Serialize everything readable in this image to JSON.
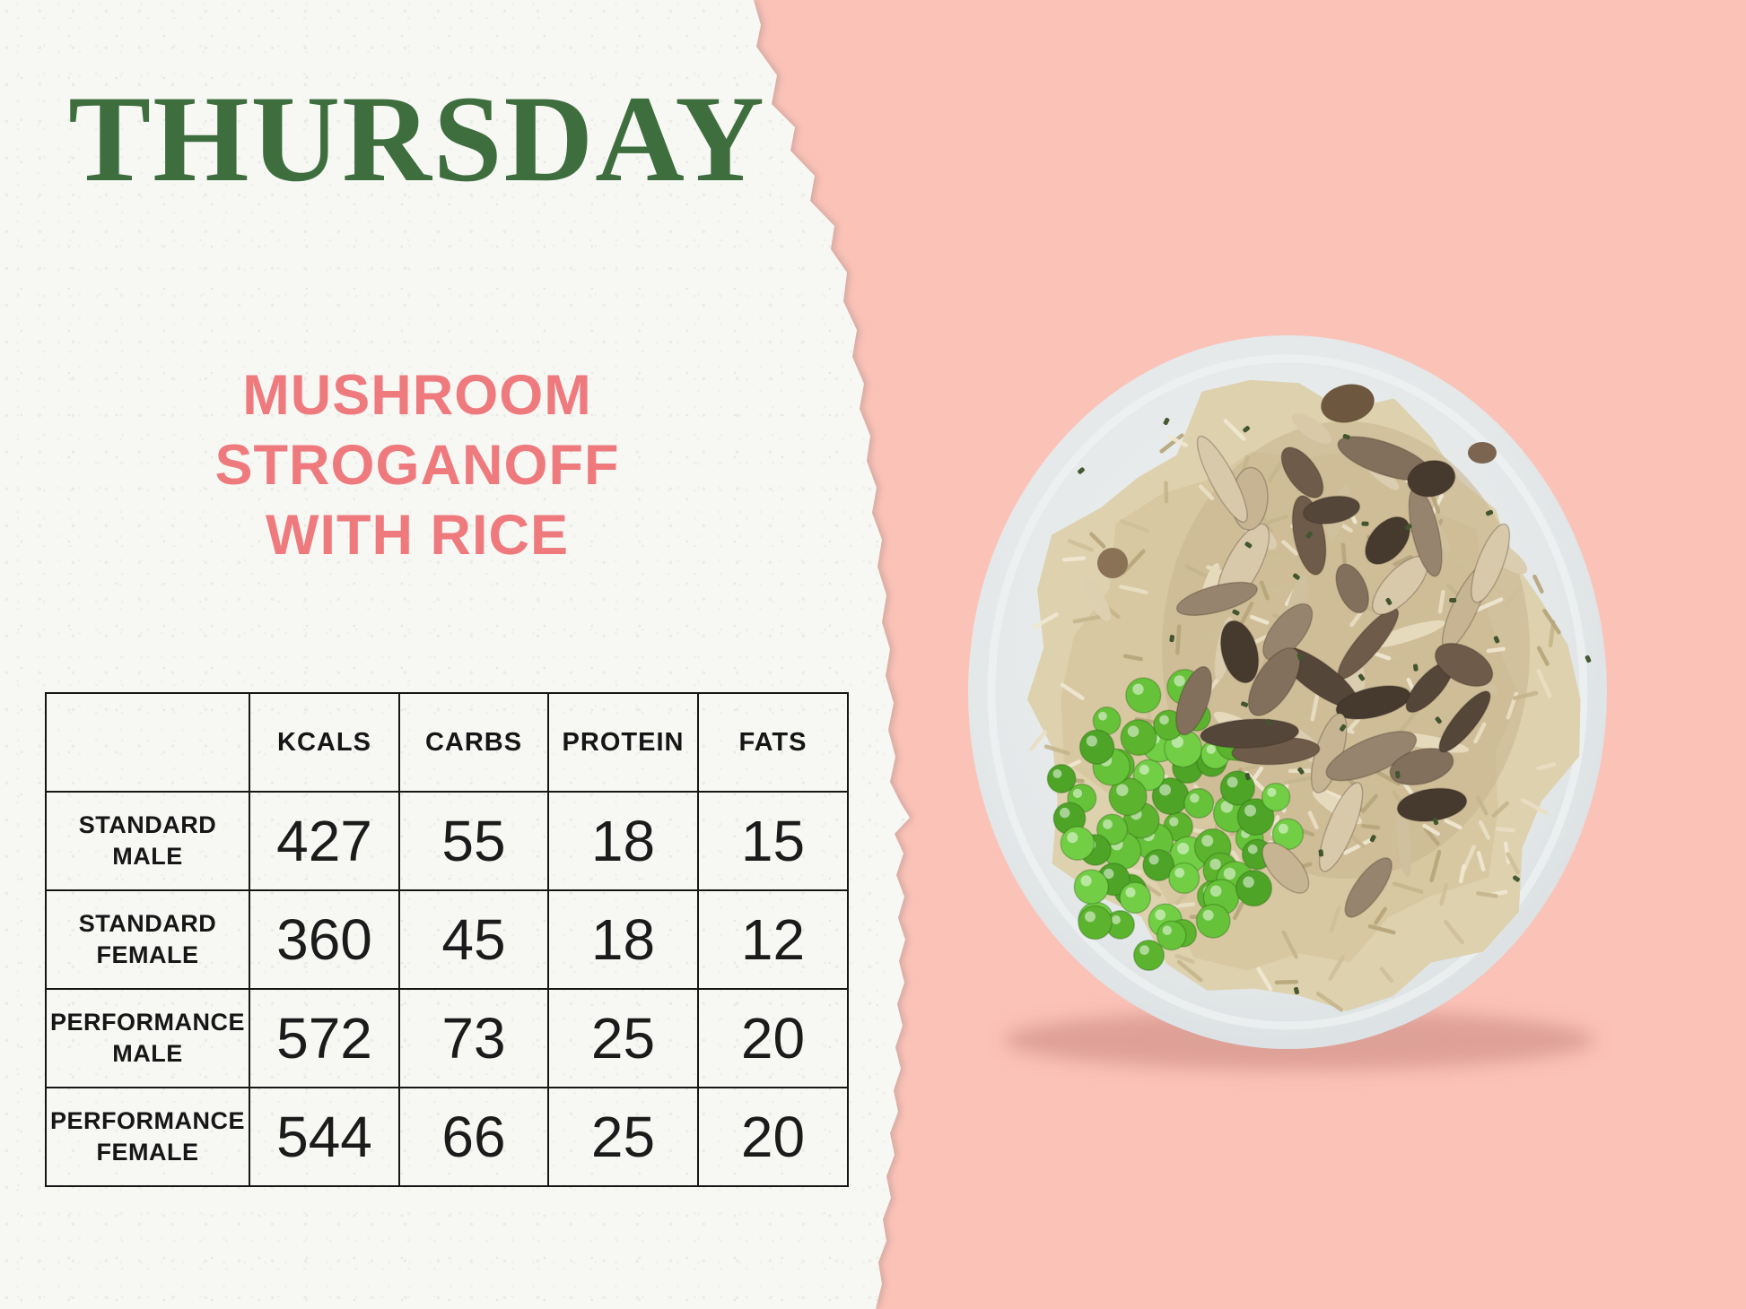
{
  "day_title": "THURSDAY",
  "meal_title": {
    "line1": "MUSHROOM",
    "line2": "STROGANOFF",
    "line3": "WITH RICE"
  },
  "nutrition_table": {
    "columns": [
      "KCALS",
      "CARBS",
      "PROTEIN",
      "FATS"
    ],
    "rows": [
      {
        "label": "STANDARD\nMALE",
        "values": [
          "427",
          "55",
          "18",
          "15"
        ]
      },
      {
        "label": "STANDARD\nFEMALE",
        "values": [
          "360",
          "45",
          "18",
          "12"
        ]
      },
      {
        "label": "PERFORMANCE\nMALE",
        "values": [
          "572",
          "73",
          "25",
          "20"
        ]
      },
      {
        "label": "PERFORMANCE\nFEMALE",
        "values": [
          "544",
          "66",
          "25",
          "20"
        ]
      }
    ]
  },
  "colors": {
    "day_title_green": "#3E6E3E",
    "meal_title_pink": "#EE7A7E",
    "background_pink": "#FBC2B8",
    "paper_white": "#F7F7F4",
    "table_line": "#161616",
    "plate_gray": "#E2E6E7",
    "rice_tan": "#D9CCA9",
    "pea_green": "#5BB42D",
    "mushroom_brown": "#6E5B49"
  }
}
